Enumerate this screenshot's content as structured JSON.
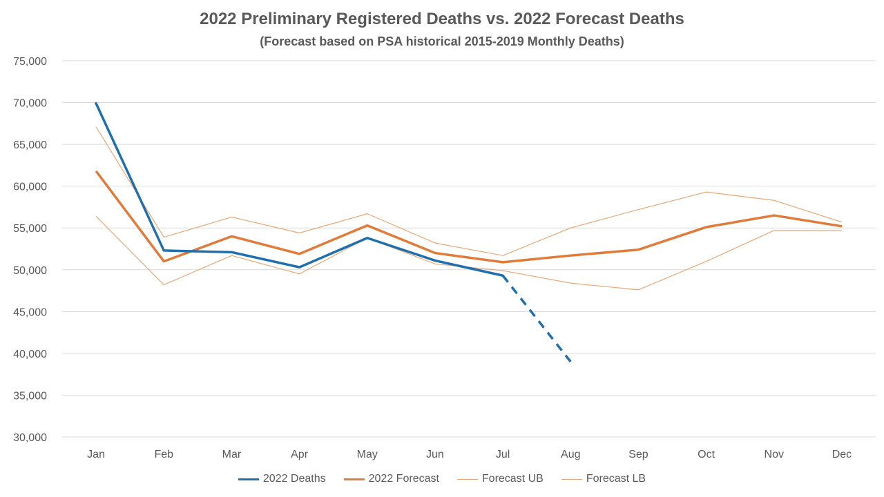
{
  "colors": {
    "deaths": "#1F6FAE",
    "forecast": "#E07B39",
    "bounds": "#E8A775",
    "grid": "#D9D9D9",
    "text": "#595959"
  },
  "chart_data": {
    "type": "line",
    "title": "2022 Preliminary Registered Deaths vs. 2022 Forecast Deaths",
    "subtitle": "(Forecast based on PSA historical 2015-2019 Monthly Deaths)",
    "xlabel": "",
    "ylabel": "",
    "categories": [
      "Jan",
      "Feb",
      "Mar",
      "Apr",
      "May",
      "Jun",
      "Jul",
      "Aug",
      "Sep",
      "Oct",
      "Nov",
      "Dec"
    ],
    "ylim": [
      30000,
      75000
    ],
    "yticks": [
      "30,000",
      "35,000",
      "40,000",
      "45,000",
      "50,000",
      "55,000",
      "60,000",
      "65,000",
      "70,000",
      "75,000"
    ],
    "ytick_values": [
      30000,
      35000,
      40000,
      45000,
      50000,
      55000,
      60000,
      65000,
      70000,
      75000
    ],
    "grid": true,
    "legend_position": "bottom",
    "series": [
      {
        "name": "2022 Deaths",
        "values": [
          69900,
          52300,
          52100,
          50300,
          53800,
          51100,
          49300,
          39000,
          null,
          null,
          null,
          null
        ],
        "dashed_from_index": 6
      },
      {
        "name": "2022 Forecast",
        "values": [
          61800,
          51000,
          54000,
          51900,
          55300,
          52000,
          50900,
          51700,
          52400,
          55100,
          56500,
          55200
        ]
      },
      {
        "name": "Forecast UB",
        "values": [
          67100,
          53900,
          56300,
          54400,
          56700,
          53200,
          51700,
          55000,
          57200,
          59300,
          58300,
          55700
        ]
      },
      {
        "name": "Forecast LB",
        "values": [
          56400,
          48200,
          51700,
          49500,
          53800,
          50700,
          49900,
          48400,
          47600,
          51000,
          54700,
          54700
        ]
      }
    ]
  }
}
